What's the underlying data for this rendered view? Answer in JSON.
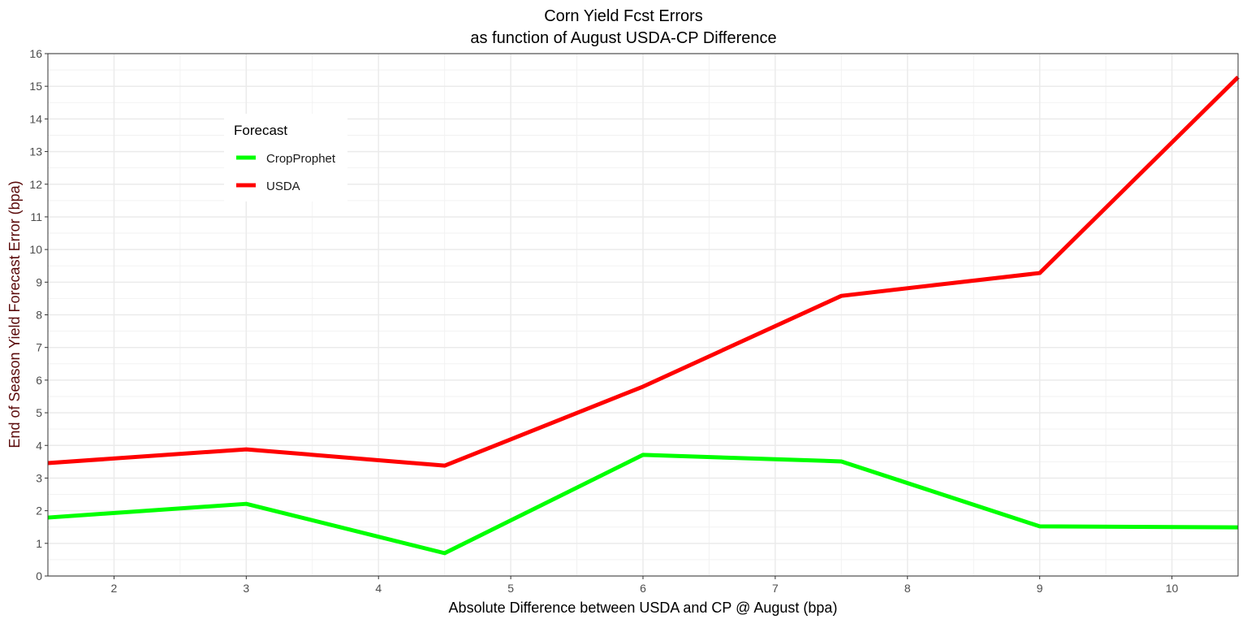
{
  "chart_data": {
    "type": "line",
    "title": "Corn Yield Fcst Errors",
    "subtitle": "as function of August USDA-CP Difference",
    "xlabel": "Absolute Difference between USDA and CP @ August (bpa)",
    "ylabel": "End of Season Yield Forecast Error (bpa)",
    "xlim": [
      1.5,
      10.5
    ],
    "ylim": [
      0,
      16
    ],
    "xticks": [
      2,
      3,
      4,
      5,
      6,
      7,
      8,
      9,
      10
    ],
    "yticks": [
      0,
      1,
      2,
      3,
      4,
      5,
      6,
      7,
      8,
      9,
      10,
      11,
      12,
      13,
      14,
      15,
      16
    ],
    "grid": true,
    "legend": {
      "title": "Forecast",
      "placement": "top-left"
    },
    "x": [
      1.5,
      3,
      4.5,
      6,
      7.5,
      9,
      10.5
    ],
    "series": [
      {
        "name": "CropProphet",
        "color": "#00ff00",
        "values": [
          1.79,
          2.21,
          0.7,
          3.71,
          3.51,
          1.52,
          1.49
        ]
      },
      {
        "name": "USDA",
        "color": "#ff0000",
        "values": [
          3.46,
          3.88,
          3.38,
          5.8,
          8.58,
          9.28,
          15.28
        ]
      }
    ],
    "ylabel_color": "#5a0a0a"
  }
}
